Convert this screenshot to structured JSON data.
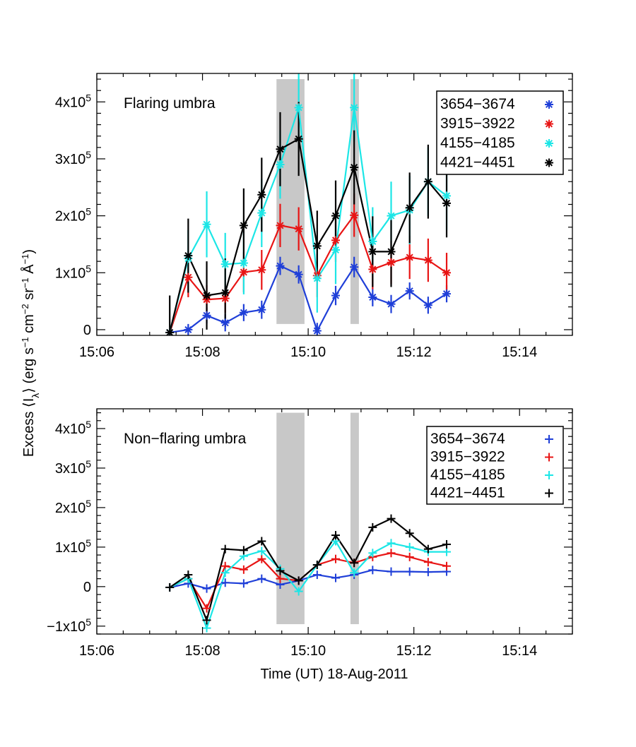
{
  "figure": {
    "xlabel": "Time (UT) 18-Aug-2011",
    "ylabel_html": "Excess ⟨I<tspan baseline-shift='sub' font-size='14'>λ</tspan>⟩ (erg s<tspan baseline-shift='super' font-size='13'>−1</tspan> cm<tspan baseline-shift='super' font-size='13'>−2</tspan> sr<tspan baseline-shift='super' font-size='13'>−1</tspan> Å<tspan baseline-shift='super' font-size='13'>−1</tspan>)",
    "ylabel": "Excess ⟨Iλ⟩ (erg s−1 cm−2 sr−1 Å−1)"
  },
  "chart_data": [
    {
      "type": "line",
      "panel_label": "Flaring umbra",
      "marker": "asterisk",
      "x_tick_labels": [
        "15:06",
        "15:08",
        "15:10",
        "15:12",
        "15:14"
      ],
      "xlim_minutes": [
        0,
        9
      ],
      "ylim": [
        -10000,
        450000
      ],
      "y_ticks": [
        {
          "value": 0,
          "label": "0"
        },
        {
          "value": 100000,
          "label": "1x10",
          "exp": "5"
        },
        {
          "value": 200000,
          "label": "2x10",
          "exp": "5"
        },
        {
          "value": 300000,
          "label": "3x10",
          "exp": "5"
        },
        {
          "value": 400000,
          "label": "4x10",
          "exp": "5"
        }
      ],
      "shaded_intervals_minutes": [
        [
          3.4,
          3.93
        ],
        [
          4.8,
          4.96
        ]
      ],
      "shade_ylim": [
        10000,
        440000
      ],
      "x_minutes": [
        1.38,
        1.73,
        2.08,
        2.43,
        2.78,
        3.12,
        3.47,
        3.82,
        4.17,
        4.52,
        4.87,
        5.22,
        5.57,
        5.92,
        6.27,
        6.62
      ],
      "series": [
        {
          "name": "3654−3674",
          "color": "#1f3fd8",
          "values": [
            -5000,
            0,
            25000,
            12000,
            30000,
            35000,
            112000,
            97000,
            -2000,
            60000,
            110000,
            57000,
            45000,
            68000,
            43000,
            63000
          ],
          "errors": [
            8000,
            10000,
            14000,
            15000,
            15000,
            16000,
            16000,
            16000,
            14000,
            17000,
            18000,
            16000,
            16000,
            15000,
            15000,
            15000
          ]
        },
        {
          "name": "3915−3922",
          "color": "#e81414",
          "values": [
            -5000,
            92000,
            53000,
            55000,
            101000,
            105000,
            183000,
            177000,
            95000,
            157000,
            201000,
            106000,
            118000,
            127000,
            122000,
            100000
          ],
          "errors": [
            8000,
            35000,
            25000,
            25000,
            35000,
            35000,
            38000,
            38000,
            38000,
            38000,
            38000,
            35000,
            38000,
            38000,
            38000,
            35000
          ]
        },
        {
          "name": "4155−4185",
          "color": "#1ce6e6",
          "values": [
            -5000,
            125000,
            185000,
            115000,
            117000,
            205000,
            290000,
            390000,
            90000,
            140000,
            390000,
            155000,
            200000,
            210000,
            260000,
            235000
          ],
          "errors": [
            8000,
            50000,
            58000,
            55000,
            55000,
            60000,
            60000,
            65000,
            60000,
            60000,
            60000,
            60000,
            60000,
            60000,
            60000,
            60000
          ]
        },
        {
          "name": "4421−4451",
          "color": "#000000",
          "values": [
            -5000,
            130000,
            60000,
            65000,
            183000,
            237000,
            317000,
            335000,
            147000,
            200000,
            285000,
            137000,
            137000,
            214000,
            260000,
            222000
          ],
          "errors": [
            65000,
            65000,
            60000,
            60000,
            65000,
            65000,
            65000,
            65000,
            62000,
            62000,
            65000,
            62000,
            62000,
            62000,
            65000,
            60000
          ]
        }
      ],
      "legend_position": "top-right"
    },
    {
      "type": "line",
      "panel_label": "Non−flaring umbra",
      "marker": "plus",
      "x_tick_labels": [
        "15:06",
        "15:08",
        "15:10",
        "15:12",
        "15:14"
      ],
      "xlim_minutes": [
        0,
        9
      ],
      "ylim": [
        -120000,
        450000
      ],
      "y_ticks": [
        {
          "value": -100000,
          "label": "−1x10",
          "exp": "5"
        },
        {
          "value": 0,
          "label": "0"
        },
        {
          "value": 100000,
          "label": "1x10",
          "exp": "5"
        },
        {
          "value": 200000,
          "label": "2x10",
          "exp": "5"
        },
        {
          "value": 300000,
          "label": "3x10",
          "exp": "5"
        },
        {
          "value": 400000,
          "label": "4x10",
          "exp": "5"
        }
      ],
      "shaded_intervals_minutes": [
        [
          3.4,
          3.93
        ],
        [
          4.8,
          4.96
        ]
      ],
      "shade_ylim": [
        -95000,
        440000
      ],
      "x_minutes": [
        1.38,
        1.73,
        2.08,
        2.43,
        2.78,
        3.12,
        3.47,
        3.82,
        4.17,
        4.52,
        4.87,
        5.22,
        5.57,
        5.92,
        6.27,
        6.62
      ],
      "series": [
        {
          "name": "3654−3674",
          "color": "#1f3fd8",
          "values": [
            -2000,
            8000,
            -5000,
            10000,
            8000,
            20000,
            5000,
            15000,
            30000,
            22000,
            30000,
            42000,
            38000,
            38000,
            37000,
            38000
          ]
        },
        {
          "name": "3915−3922",
          "color": "#e81414",
          "values": [
            -2000,
            20000,
            -55000,
            52000,
            43000,
            70000,
            20000,
            15000,
            55000,
            70000,
            60000,
            75000,
            85000,
            75000,
            62000,
            52000
          ]
        },
        {
          "name": "4155−4185",
          "color": "#1ce6e6",
          "values": [
            -2000,
            20000,
            -105000,
            35000,
            77000,
            90000,
            45000,
            -12000,
            55000,
            115000,
            35000,
            85000,
            110000,
            100000,
            88000,
            88000
          ]
        },
        {
          "name": "4421−4451",
          "color": "#000000",
          "values": [
            -2000,
            30000,
            -85000,
            95000,
            92000,
            115000,
            40000,
            15000,
            55000,
            130000,
            60000,
            150000,
            172000,
            135000,
            95000,
            107000
          ]
        }
      ],
      "legend_position": "top-right"
    }
  ]
}
